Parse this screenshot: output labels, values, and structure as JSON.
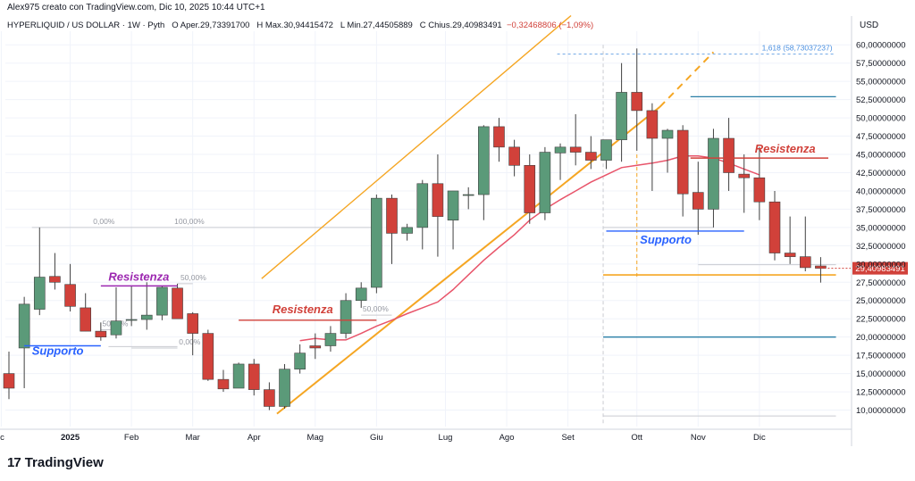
{
  "header": {
    "author_line": "Alex975 creato con TradingView.com, Dic 10, 2025 10:44 UTC+1",
    "symbol": "HYPERLIQUID / US DOLLAR · 1W · Pyth",
    "open_label": "O",
    "open": "Aper.29,73391700",
    "high_label": "H",
    "high": "Max.30,94415472",
    "low_label": "L",
    "low": "Min.27,44505889",
    "close_label": "C",
    "close": "Chius.29,40983491",
    "change": "−0,32468806 (−1,09%)"
  },
  "footer": {
    "brand": "TradingView",
    "logo_mark": "17"
  },
  "colors": {
    "up": "#5b9a79",
    "down": "#d1413a",
    "channel": "#f5a623",
    "ma": "#e8546a",
    "blue": "#2962ff",
    "teal": "#2a7fa6",
    "red": "#d1413a",
    "purple": "#9c27b0",
    "grid": "#f0f3fa"
  },
  "chart_data": {
    "type": "candlestick",
    "title": "HYPERLIQUID / US DOLLAR · 1W · Pyth",
    "currency": "USD",
    "ylim": [
      7.5,
      62.5
    ],
    "y_ticks": [
      "10,00000000",
      "12,50000000",
      "15,00000000",
      "17,50000000",
      "20,00000000",
      "22,50000000",
      "25,00000000",
      "27,50000000",
      "30,00000000",
      "32,50000000",
      "35,00000000",
      "37,50000000",
      "40,00000000",
      "42,50000000",
      "45,00000000",
      "47,50000000",
      "50,00000000",
      "52,50000000",
      "55,00000000",
      "57,50000000",
      "60,00000000"
    ],
    "x_labels": [
      "ic",
      "2025",
      "Feb",
      "Mar",
      "Apr",
      "Mag",
      "Giu",
      "Lug",
      "Ago",
      "Set",
      "Ott",
      "Nov",
      "Dic"
    ],
    "x_label_weeks": [
      -0.5,
      4,
      8,
      12,
      16,
      20,
      24,
      28.5,
      32.5,
      36.5,
      41,
      45,
      49
    ],
    "last_price_label": "29,40983491",
    "last_price": 29.41,
    "candles": [
      {
        "o": 15.0,
        "h": 18.0,
        "l": 11.5,
        "c": 13.0
      },
      {
        "o": 18.5,
        "h": 25.5,
        "l": 13.0,
        "c": 24.5
      },
      {
        "o": 23.8,
        "h": 35.0,
        "l": 23.0,
        "c": 28.2
      },
      {
        "o": 28.3,
        "h": 31.5,
        "l": 26.5,
        "c": 27.5
      },
      {
        "o": 27.2,
        "h": 30.0,
        "l": 23.5,
        "c": 24.2
      },
      {
        "o": 24.0,
        "h": 26.0,
        "l": 20.8,
        "c": 20.8
      },
      {
        "o": 20.8,
        "h": 22.0,
        "l": 19.5,
        "c": 20.0
      },
      {
        "o": 20.3,
        "h": 26.8,
        "l": 19.8,
        "c": 22.2
      },
      {
        "o": 22.4,
        "h": 27.0,
        "l": 21.5,
        "c": 22.4
      },
      {
        "o": 22.4,
        "h": 27.5,
        "l": 21.0,
        "c": 23.0
      },
      {
        "o": 23.0,
        "h": 27.0,
        "l": 22.3,
        "c": 26.8
      },
      {
        "o": 26.7,
        "h": 27.3,
        "l": 22.5,
        "c": 22.5
      },
      {
        "o": 23.2,
        "h": 23.4,
        "l": 17.5,
        "c": 20.5
      },
      {
        "o": 20.5,
        "h": 21.0,
        "l": 14.0,
        "c": 14.2
      },
      {
        "o": 14.2,
        "h": 15.5,
        "l": 12.5,
        "c": 12.9
      },
      {
        "o": 13.0,
        "h": 16.5,
        "l": 13.0,
        "c": 16.3
      },
      {
        "o": 16.3,
        "h": 17.0,
        "l": 12.0,
        "c": 12.8
      },
      {
        "o": 12.8,
        "h": 13.8,
        "l": 10.0,
        "c": 10.5
      },
      {
        "o": 10.5,
        "h": 16.3,
        "l": 10.2,
        "c": 15.6
      },
      {
        "o": 15.6,
        "h": 19.0,
        "l": 15.0,
        "c": 17.8
      },
      {
        "o": 18.8,
        "h": 20.5,
        "l": 17.0,
        "c": 18.5
      },
      {
        "o": 18.8,
        "h": 21.5,
        "l": 18.0,
        "c": 20.5
      },
      {
        "o": 20.5,
        "h": 26.0,
        "l": 19.8,
        "c": 25.0
      },
      {
        "o": 25.0,
        "h": 27.5,
        "l": 24.0,
        "c": 26.7
      },
      {
        "o": 26.8,
        "h": 39.5,
        "l": 26.0,
        "c": 39.0
      },
      {
        "o": 39.0,
        "h": 39.5,
        "l": 30.0,
        "c": 34.2
      },
      {
        "o": 34.2,
        "h": 35.5,
        "l": 33.2,
        "c": 35.0
      },
      {
        "o": 35.0,
        "h": 41.5,
        "l": 32.0,
        "c": 41.0
      },
      {
        "o": 41.0,
        "h": 45.0,
        "l": 31.0,
        "c": 36.5
      },
      {
        "o": 36.0,
        "h": 40.0,
        "l": 32.0,
        "c": 40.0
      },
      {
        "o": 39.5,
        "h": 40.5,
        "l": 37.5,
        "c": 39.5
      },
      {
        "o": 39.5,
        "h": 49.0,
        "l": 36.0,
        "c": 48.8
      },
      {
        "o": 48.8,
        "h": 50.0,
        "l": 44.0,
        "c": 46.0
      },
      {
        "o": 46.0,
        "h": 47.0,
        "l": 42.0,
        "c": 43.5
      },
      {
        "o": 43.5,
        "h": 45.0,
        "l": 35.5,
        "c": 37.0
      },
      {
        "o": 37.0,
        "h": 46.0,
        "l": 36.0,
        "c": 45.3
      },
      {
        "o": 45.2,
        "h": 46.5,
        "l": 41.5,
        "c": 46.0
      },
      {
        "o": 46.0,
        "h": 50.5,
        "l": 43.5,
        "c": 45.3
      },
      {
        "o": 45.3,
        "h": 47.5,
        "l": 43.0,
        "c": 44.2
      },
      {
        "o": 44.2,
        "h": 47.0,
        "l": 43.0,
        "c": 47.0
      },
      {
        "o": 47.0,
        "h": 57.5,
        "l": 44.0,
        "c": 53.5
      },
      {
        "o": 53.5,
        "h": 59.5,
        "l": 45.5,
        "c": 51.0
      },
      {
        "o": 51.0,
        "h": 52.0,
        "l": 40.0,
        "c": 47.2
      },
      {
        "o": 47.2,
        "h": 48.5,
        "l": 42.5,
        "c": 48.3
      },
      {
        "o": 48.3,
        "h": 49.0,
        "l": 36.5,
        "c": 39.6
      },
      {
        "o": 39.8,
        "h": 44.0,
        "l": 34.0,
        "c": 37.5
      },
      {
        "o": 37.5,
        "h": 48.5,
        "l": 35.0,
        "c": 47.2
      },
      {
        "o": 47.2,
        "h": 50.0,
        "l": 40.0,
        "c": 42.5
      },
      {
        "o": 42.3,
        "h": 45.0,
        "l": 37.0,
        "c": 41.8
      },
      {
        "o": 41.8,
        "h": 46.0,
        "l": 36.0,
        "c": 38.5
      },
      {
        "o": 38.5,
        "h": 40.0,
        "l": 30.5,
        "c": 31.5
      },
      {
        "o": 31.5,
        "h": 36.5,
        "l": 30.0,
        "c": 31.0
      },
      {
        "o": 31.0,
        "h": 36.5,
        "l": 29.0,
        "c": 29.5
      },
      {
        "o": 29.73,
        "h": 30.94,
        "l": 27.45,
        "c": 29.41
      }
    ],
    "moving_average": [
      [
        19,
        19.5
      ],
      [
        20,
        19.8
      ],
      [
        21,
        19.6
      ],
      [
        22,
        19.6
      ],
      [
        23,
        20.5
      ],
      [
        24,
        21.5
      ],
      [
        25,
        22.3
      ],
      [
        26,
        23.2
      ],
      [
        27,
        24.0
      ],
      [
        28,
        24.8
      ],
      [
        29,
        26.5
      ],
      [
        30,
        28.5
      ],
      [
        31,
        30.5
      ],
      [
        32,
        32.3
      ],
      [
        33,
        34.0
      ],
      [
        34,
        36.0
      ],
      [
        35,
        37.5
      ],
      [
        36,
        38.8
      ],
      [
        37,
        40.0
      ],
      [
        38,
        41.2
      ],
      [
        39,
        42.2
      ],
      [
        40,
        43.2
      ],
      [
        41,
        43.5
      ],
      [
        42,
        43.8
      ],
      [
        43,
        44.2
      ],
      [
        44,
        44.8
      ],
      [
        45,
        44.8
      ],
      [
        46,
        44.5
      ],
      [
        47,
        43.8
      ],
      [
        48,
        43.0
      ],
      [
        49,
        42.2
      ]
    ],
    "channel_upper": [
      [
        16.5,
        28.0
      ],
      [
        36.7,
        64.0
      ]
    ],
    "channel_lower": [
      [
        17.5,
        9.5
      ],
      [
        42.5,
        51.5
      ]
    ],
    "channel_lower_extension": [
      [
        42.5,
        51.5
      ],
      [
        46.0,
        59.0
      ]
    ],
    "annotations": [
      {
        "text": "Supporto",
        "kind": "support",
        "color": "#2962ff",
        "price": 18.8,
        "w0": 1,
        "w1": 6,
        "label_w": 1.5,
        "label_dy": 10
      },
      {
        "text": "Resistenza",
        "kind": "resistance",
        "color": "#9c27b0",
        "price": 27.0,
        "w0": 6,
        "w1": 11,
        "label_w": 6.5,
        "label_dy": -6
      },
      {
        "text": "Resistenza",
        "kind": "resistance",
        "color": "#d1413a",
        "price": 22.3,
        "w0": 15,
        "w1": 24,
        "label_w": 17.2,
        "label_dy": -8
      },
      {
        "text": "Supporto",
        "kind": "support",
        "color": "#2962ff",
        "price": 34.5,
        "w0": 39,
        "w1": 48,
        "label_w": 41.2,
        "label_dy": 14
      },
      {
        "text": "Resistenza",
        "kind": "resistance",
        "color": "#d1413a",
        "price": 44.5,
        "w0": 44.5,
        "w1": 53.5,
        "label_w": 48.7,
        "label_dy": -6
      }
    ],
    "fib_levels": [
      {
        "text": "0,00%",
        "price": 35.0,
        "w0": 1.5,
        "w1": 10.5,
        "label_w": 5.5
      },
      {
        "text": "100,00%",
        "price": 35.0,
        "w0": 10.5,
        "w1": 24,
        "label_w": 10.8
      },
      {
        "text": "50,00%",
        "price": 27.3,
        "w0": 11,
        "w1": 12,
        "label_w": 11.2
      },
      {
        "text": "50,00%",
        "price": 21.0,
        "w0": 6,
        "w1": 7,
        "label_w": 6.1
      },
      {
        "text": "0,00%",
        "price": 18.5,
        "w0": 8,
        "w1": 11,
        "label_w": 11.1
      },
      {
        "text": "50,00%",
        "price": 23.0,
        "w0": 23,
        "w1": 25,
        "label_w": 23.1
      }
    ],
    "fib_target": {
      "text": "1,618 (58,73037237)",
      "price": 58.73,
      "w0": 35.8,
      "w1": 54
    },
    "horizontal_lines": [
      {
        "price": 52.9,
        "w0": 44.5,
        "w1": 54,
        "color": "#2a7fa6",
        "width": 1.3
      },
      {
        "price": 20.0,
        "w0": 38.8,
        "w1": 54,
        "color": "#2a7fa6",
        "width": 1.3
      },
      {
        "price": 28.5,
        "w0": 38.8,
        "w1": 54,
        "color": "#f5a623",
        "width": 1.6
      },
      {
        "price": 9.2,
        "w0": 38.8,
        "w1": 54,
        "color": "#c9cbd1",
        "width": 1
      },
      {
        "price": 18.7,
        "w0": 6.5,
        "w1": 11,
        "color": "#c9cbd1",
        "width": 1
      },
      {
        "price": 35.0,
        "w0": 38.8,
        "w1": 46,
        "color": "#c9cbd1",
        "width": 1
      },
      {
        "price": 29.9,
        "w0": 45,
        "w1": 54,
        "color": "#c9cbd1",
        "width": 1
      }
    ],
    "vertical_markers": [
      {
        "week": 41,
        "p0": 28.0,
        "p1": 45.0,
        "color": "#f5a623"
      },
      {
        "week": 38.8,
        "p0": 8.0,
        "p1": 60.0,
        "color": "#c9cbd1"
      }
    ]
  }
}
